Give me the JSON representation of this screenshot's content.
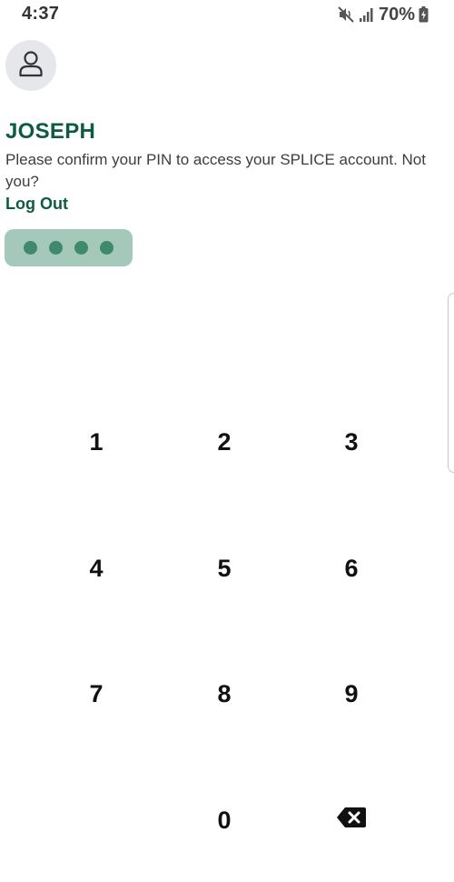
{
  "status_bar": {
    "time": "4:37",
    "battery_percent": "70%",
    "icons": [
      "mute-vibrate-icon",
      "signal-icon",
      "battery-charging-icon"
    ]
  },
  "user": {
    "avatar_icon": "person-icon",
    "name": "JOSEPH"
  },
  "prompt": {
    "message": "Please confirm your PIN to access your SPLICE account. Not you?",
    "logout_label": "Log Out"
  },
  "pin": {
    "entered_digits": 4
  },
  "keypad": {
    "keys": [
      "1",
      "2",
      "3",
      "4",
      "5",
      "6",
      "7",
      "8",
      "9",
      "0"
    ],
    "backspace_icon": "backspace-icon"
  },
  "colors": {
    "brand_green": "#0e5b3f",
    "pin_pill_bg": "#a4c8b9",
    "pin_dot": "#3f8a6c"
  }
}
